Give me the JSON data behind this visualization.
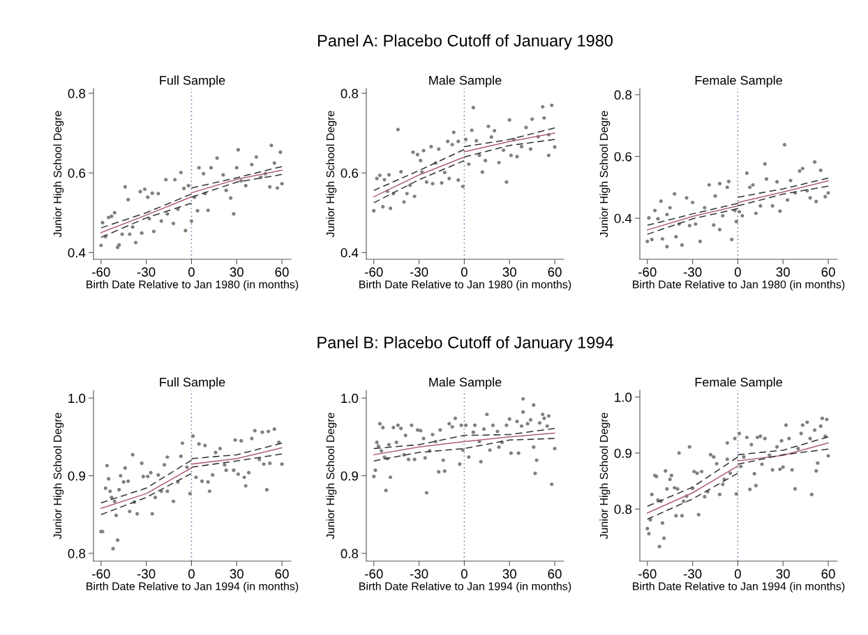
{
  "chart_data": [
    {
      "type": "scatter",
      "title": "Full Sample",
      "xlabel": "Birth Date Relative to Jan 1980 (in months)",
      "ylabel": "Junior High School Degre",
      "marker": "circle",
      "xlim": [
        -65,
        66
      ],
      "xticks": [
        -60,
        -30,
        0,
        30,
        60
      ],
      "ylim": [
        0.383,
        0.812
      ],
      "yticks": [
        {
          "value": 0.4,
          "label": "0.4"
        },
        {
          "value": 0.6,
          "label": "0.6"
        },
        {
          "value": 0.8,
          "label": "0.8"
        }
      ],
      "ref_lines": [
        {
          "axis": "x",
          "value": 0,
          "color": "#4a6f9a",
          "line_style": "dotted"
        }
      ],
      "series": [
        {
          "color": "#808080",
          "x": [
            -60,
            -59,
            -57,
            -55,
            -53,
            -51,
            -49,
            -48,
            -46,
            -44,
            -42,
            -41,
            -39,
            -37,
            -34,
            -33,
            -31,
            -29,
            -28,
            -26,
            -25,
            -22,
            -20,
            -17,
            -16,
            -12,
            -11,
            -9,
            -7,
            -5,
            -4,
            -2,
            0,
            2,
            4,
            5,
            8,
            9,
            11,
            13,
            17,
            21,
            23,
            26,
            28,
            30,
            31,
            33,
            36,
            40,
            43,
            46,
            49,
            52,
            53,
            55,
            57,
            59,
            60
          ],
          "values": [
            0.418,
            0.475,
            0.44,
            0.488,
            0.491,
            0.5,
            0.413,
            0.419,
            0.446,
            0.565,
            0.533,
            0.446,
            0.464,
            0.425,
            0.553,
            0.449,
            0.559,
            0.539,
            0.485,
            0.549,
            0.453,
            0.548,
            0.479,
            0.583,
            0.497,
            0.473,
            0.583,
            0.509,
            0.601,
            0.561,
            0.455,
            0.568,
            0.479,
            0.539,
            0.505,
            0.613,
            0.598,
            0.548,
            0.506,
            0.613,
            0.637,
            0.595,
            0.556,
            0.537,
            0.497,
            0.613,
            0.658,
            0.58,
            0.568,
            0.621,
            0.64,
            0.589,
            0.598,
            0.565,
            0.669,
            0.625,
            0.562,
            0.652,
            0.573
          ]
        },
        {
          "type": "line",
          "color": "#b06070",
          "marker": "none",
          "x": [
            -60,
            -30,
            0
          ],
          "values": [
            0.45,
            0.494,
            0.54
          ]
        },
        {
          "type": "line",
          "color": "#b06070",
          "marker": "none",
          "x": [
            0,
            30,
            60
          ],
          "values": [
            0.55,
            0.584,
            0.607
          ]
        },
        {
          "type": "line",
          "color": "#333333",
          "marker": "none",
          "line_style": "dashed",
          "x": [
            -60,
            -30,
            0
          ],
          "values": [
            0.462,
            0.5,
            0.547
          ]
        },
        {
          "type": "line",
          "color": "#333333",
          "marker": "none",
          "line_style": "dashed",
          "x": [
            -60,
            -30,
            0
          ],
          "values": [
            0.438,
            0.487,
            0.524
          ]
        },
        {
          "type": "line",
          "color": "#333333",
          "marker": "none",
          "line_style": "dashed",
          "x": [
            0,
            30,
            60
          ],
          "values": [
            0.562,
            0.588,
            0.616
          ]
        },
        {
          "type": "line",
          "color": "#333333",
          "marker": "none",
          "line_style": "dashed",
          "x": [
            0,
            30,
            60
          ],
          "values": [
            0.539,
            0.577,
            0.596
          ]
        }
      ]
    },
    {
      "type": "scatter",
      "title": "Male Sample",
      "annotations": [
        "Panel A: Placebo Cutoff of January 1980"
      ],
      "xlabel": "Birth Date Relative to Jan 1980 (in months)",
      "ylabel": "Junior High School Degre",
      "marker": "circle",
      "xlim": [
        -65,
        66
      ],
      "xticks": [
        -60,
        -30,
        0,
        30,
        60
      ],
      "ylim": [
        0.383,
        0.812
      ],
      "yticks": [
        {
          "value": 0.4,
          "label": "0.4"
        },
        {
          "value": 0.6,
          "label": "0.6"
        },
        {
          "value": 0.8,
          "label": "0.8"
        }
      ],
      "ref_lines": [
        {
          "axis": "x",
          "value": 0,
          "color": "#4a6f9a",
          "line_style": "dotted"
        }
      ],
      "series": [
        {
          "color": "#808080",
          "x": [
            -60,
            -58,
            -56,
            -54,
            -53,
            -51,
            -50,
            -49,
            -47,
            -44,
            -42,
            -40,
            -38,
            -36,
            -34,
            -33,
            -31,
            -29,
            -28,
            -27,
            -25,
            -22,
            -21,
            -19,
            -17,
            -15,
            -13,
            -11,
            -10,
            -8,
            -7,
            -4,
            -4,
            -1,
            1,
            3,
            5,
            6,
            8,
            10,
            12,
            14,
            16,
            18,
            20,
            23,
            26,
            28,
            30,
            31,
            33,
            35,
            38,
            41,
            44,
            45,
            49,
            52,
            53,
            56,
            56,
            58,
            60
          ],
          "values": [
            0.505,
            0.586,
            0.594,
            0.515,
            0.583,
            0.554,
            0.595,
            0.511,
            0.548,
            0.709,
            0.603,
            0.527,
            0.548,
            0.569,
            0.652,
            0.541,
            0.646,
            0.631,
            0.602,
            0.656,
            0.577,
            0.666,
            0.573,
            0.625,
            0.66,
            0.575,
            0.601,
            0.679,
            0.586,
            0.671,
            0.702,
            0.679,
            0.582,
            0.566,
            0.684,
            0.622,
            0.707,
            0.764,
            0.681,
            0.644,
            0.602,
            0.631,
            0.717,
            0.69,
            0.706,
            0.626,
            0.657,
            0.577,
            0.733,
            0.644,
            0.684,
            0.641,
            0.666,
            0.714,
            0.66,
            0.735,
            0.691,
            0.766,
            0.738,
            0.696,
            0.644,
            0.77,
            0.665
          ]
        },
        {
          "type": "line",
          "color": "#b06070",
          "marker": "none",
          "x": [
            -60,
            -30,
            0
          ],
          "values": [
            0.54,
            0.595,
            0.64
          ]
        },
        {
          "type": "line",
          "color": "#b06070",
          "marker": "none",
          "x": [
            0,
            30,
            60
          ],
          "values": [
            0.653,
            0.679,
            0.7
          ]
        },
        {
          "type": "line",
          "color": "#333333",
          "marker": "none",
          "line_style": "dashed",
          "x": [
            -60,
            -30,
            0
          ],
          "values": [
            0.556,
            0.606,
            0.659
          ]
        },
        {
          "type": "line",
          "color": "#333333",
          "marker": "none",
          "line_style": "dashed",
          "x": [
            -60,
            -30,
            0
          ],
          "values": [
            0.525,
            0.583,
            0.631
          ]
        },
        {
          "type": "line",
          "color": "#333333",
          "marker": "none",
          "line_style": "dashed",
          "x": [
            0,
            30,
            60
          ],
          "values": [
            0.666,
            0.684,
            0.713
          ]
        },
        {
          "type": "line",
          "color": "#333333",
          "marker": "none",
          "line_style": "dashed",
          "x": [
            0,
            30,
            60
          ],
          "values": [
            0.64,
            0.669,
            0.684
          ]
        }
      ]
    },
    {
      "type": "scatter",
      "title": "Female Sample",
      "xlabel": "Birth Date Relative to Jan 1980 (in months)",
      "ylabel": "Junior High School Degre",
      "marker": "circle",
      "xlim": [
        -65,
        66
      ],
      "xticks": [
        -60,
        -30,
        0,
        30,
        60
      ],
      "ylim": [
        0.267,
        0.82
      ],
      "yticks": [
        {
          "value": 0.4,
          "label": "0.4"
        },
        {
          "value": 0.6,
          "label": "0.6"
        },
        {
          "value": 0.8,
          "label": "0.8"
        }
      ],
      "ref_lines": [
        {
          "axis": "x",
          "value": 0,
          "color": "#4a6f9a",
          "line_style": "dotted"
        }
      ],
      "series": [
        {
          "color": "#808080",
          "x": [
            -60,
            -59,
            -57,
            -55,
            -53,
            -51,
            -50,
            -47,
            -47,
            -45,
            -42,
            -41,
            -39,
            -37,
            -34,
            -32,
            -30,
            -28,
            -25,
            -22,
            -19,
            -16,
            -15,
            -12,
            -12,
            -10,
            -7,
            -6,
            -4,
            -2,
            -1,
            1,
            3,
            6,
            8,
            10,
            12,
            15,
            18,
            19,
            23,
            26,
            28,
            31,
            33,
            35,
            38,
            41,
            43,
            46,
            48,
            51,
            52,
            55,
            58,
            60
          ],
          "values": [
            0.325,
            0.401,
            0.331,
            0.425,
            0.398,
            0.455,
            0.333,
            0.308,
            0.412,
            0.434,
            0.479,
            0.34,
            0.381,
            0.313,
            0.466,
            0.376,
            0.451,
            0.381,
            0.325,
            0.434,
            0.508,
            0.378,
            0.472,
            0.363,
            0.512,
            0.408,
            0.5,
            0.519,
            0.331,
            0.425,
            0.389,
            0.421,
            0.408,
            0.546,
            0.5,
            0.508,
            0.416,
            0.44,
            0.576,
            0.527,
            0.44,
            0.518,
            0.423,
            0.638,
            0.459,
            0.522,
            0.482,
            0.553,
            0.561,
            0.489,
            0.466,
            0.582,
            0.454,
            0.555,
            0.47,
            0.482
          ]
        },
        {
          "type": "line",
          "color": "#b06070",
          "marker": "none",
          "x": [
            -60,
            -30,
            0
          ],
          "values": [
            0.362,
            0.406,
            0.44
          ]
        },
        {
          "type": "line",
          "color": "#b06070",
          "marker": "none",
          "x": [
            0,
            30,
            60
          ],
          "values": [
            0.451,
            0.485,
            0.521
          ]
        },
        {
          "type": "line",
          "color": "#333333",
          "marker": "none",
          "line_style": "dashed",
          "x": [
            -60,
            -30,
            0
          ],
          "values": [
            0.377,
            0.414,
            0.448
          ]
        },
        {
          "type": "line",
          "color": "#333333",
          "marker": "none",
          "line_style": "dashed",
          "x": [
            -60,
            -30,
            0
          ],
          "values": [
            0.348,
            0.398,
            0.431
          ]
        },
        {
          "type": "line",
          "color": "#333333",
          "marker": "none",
          "line_style": "dashed",
          "x": [
            0,
            30,
            60
          ],
          "values": [
            0.468,
            0.495,
            0.53
          ]
        },
        {
          "type": "line",
          "color": "#333333",
          "marker": "none",
          "line_style": "dashed",
          "x": [
            0,
            30,
            60
          ],
          "values": [
            0.44,
            0.478,
            0.504
          ]
        }
      ]
    },
    {
      "type": "scatter",
      "title": "Full Sample",
      "xlabel": "Birth Date Relative to Jan 1994 (in months)",
      "ylabel": "Junior High School Degre",
      "marker": "circle",
      "xlim": [
        -65,
        66
      ],
      "xticks": [
        -60,
        -30,
        0,
        30,
        60
      ],
      "ylim": [
        0.79,
        1.01
      ],
      "yticks": [
        {
          "value": 0.8,
          "label": "0.8"
        },
        {
          "value": 0.9,
          "label": "0.9"
        },
        {
          "value": 1,
          "label": "1.0"
        }
      ],
      "ref_lines": [
        {
          "axis": "x",
          "value": 0,
          "color": "#4a6f9a",
          "line_style": "dotted"
        }
      ],
      "series": [
        {
          "color": "#808080",
          "x": [
            -60,
            -59,
            -57,
            -56,
            -55,
            -54,
            -53,
            -52,
            -51,
            -50,
            -49,
            -48,
            -47,
            -45,
            -44,
            -42,
            -41,
            -39,
            -38,
            -36,
            -33,
            -32,
            -29,
            -27,
            -26,
            -24,
            -22,
            -20,
            -18,
            -16,
            -16,
            -12,
            -9,
            -7,
            -6,
            -3,
            -1,
            1,
            3,
            5,
            7,
            9,
            11,
            12,
            14,
            16,
            19,
            22,
            23,
            28,
            29,
            31,
            33,
            35,
            36,
            38,
            40,
            42,
            45,
            47,
            48,
            50,
            51,
            52,
            55,
            58,
            60
          ],
          "values": [
            0.828,
            0.828,
            0.884,
            0.913,
            0.896,
            0.88,
            0.872,
            0.806,
            0.867,
            0.849,
            0.817,
            0.882,
            0.9,
            0.892,
            0.91,
            0.893,
            0.854,
            0.927,
            0.866,
            0.851,
            0.916,
            0.899,
            0.899,
            0.904,
            0.851,
            0.872,
            0.901,
            0.88,
            0.914,
            0.88,
            0.924,
            0.867,
            0.892,
            0.925,
            0.942,
            0.911,
            0.877,
            0.951,
            0.898,
            0.941,
            0.893,
            0.939,
            0.892,
            0.88,
            0.901,
            0.93,
            0.935,
            0.914,
            0.907,
            0.907,
            0.946,
            0.902,
            0.945,
            0.898,
            0.887,
            0.904,
            0.948,
            0.958,
            0.921,
            0.956,
            0.915,
            0.882,
            0.957,
            0.916,
            0.96,
            0.943,
            0.915
          ]
        },
        {
          "type": "line",
          "color": "#b06070",
          "marker": "none",
          "x": [
            -60,
            -30,
            0
          ],
          "values": [
            0.858,
            0.877,
            0.91
          ]
        },
        {
          "type": "line",
          "color": "#b06070",
          "marker": "none",
          "x": [
            0,
            30,
            60
          ],
          "values": [
            0.915,
            0.922,
            0.936
          ]
        },
        {
          "type": "line",
          "color": "#333333",
          "marker": "none",
          "line_style": "dashed",
          "x": [
            -60,
            -30,
            0
          ],
          "values": [
            0.865,
            0.884,
            0.92
          ]
        },
        {
          "type": "line",
          "color": "#333333",
          "marker": "none",
          "line_style": "dashed",
          "x": [
            -60,
            -30,
            0
          ],
          "values": [
            0.85,
            0.872,
            0.903
          ]
        },
        {
          "type": "line",
          "color": "#333333",
          "marker": "none",
          "line_style": "dashed",
          "x": [
            0,
            30,
            60
          ],
          "values": [
            0.922,
            0.927,
            0.942
          ]
        },
        {
          "type": "line",
          "color": "#333333",
          "marker": "none",
          "line_style": "dashed",
          "x": [
            0,
            30,
            60
          ],
          "values": [
            0.911,
            0.919,
            0.928
          ]
        }
      ]
    },
    {
      "type": "scatter",
      "title": "Male Sample",
      "annotations": [
        "Panel B: Placebo Cutoff of January 1994"
      ],
      "xlabel": "Birth Date Relative to Jan 1994 (in months)",
      "ylabel": "Junior High School Degre",
      "marker": "circle",
      "xlim": [
        -65,
        66
      ],
      "xticks": [
        -60,
        -30,
        0,
        30,
        60
      ],
      "ylim": [
        0.79,
        1.01
      ],
      "yticks": [
        {
          "value": 0.8,
          "label": "0.8"
        },
        {
          "value": 0.9,
          "label": "0.9"
        },
        {
          "value": 1,
          "label": "1.0"
        }
      ],
      "ref_lines": [
        {
          "axis": "x",
          "value": 0,
          "color": "#4a6f9a",
          "line_style": "dotted"
        }
      ],
      "series": [
        {
          "color": "#808080",
          "x": [
            -60,
            -59,
            -58,
            -57,
            -56,
            -55,
            -54,
            -53,
            -52,
            -51,
            -50,
            -49,
            -47,
            -45,
            -44,
            -42,
            -40,
            -39,
            -37,
            -35,
            -33,
            -31,
            -29,
            -27,
            -26,
            -25,
            -23,
            -21,
            -19,
            -17,
            -16,
            -14,
            -13,
            -10,
            -8,
            -6,
            -3,
            -2,
            -1,
            1,
            3,
            6,
            7,
            10,
            11,
            13,
            15,
            17,
            19,
            22,
            23,
            25,
            28,
            30,
            31,
            35,
            36,
            38,
            39,
            39,
            42,
            44,
            46,
            46,
            47,
            48,
            50,
            52,
            53,
            55,
            56,
            58,
            60
          ],
          "values": [
            0.899,
            0.907,
            0.943,
            0.938,
            0.967,
            0.932,
            0.962,
            0.924,
            0.881,
            0.922,
            0.94,
            0.898,
            0.962,
            0.943,
            0.965,
            0.961,
            0.927,
            0.952,
            0.921,
            0.965,
            0.921,
            0.959,
            0.958,
            0.948,
            0.923,
            0.878,
            0.932,
            0.953,
            0.944,
            0.905,
            0.959,
            0.92,
            0.906,
            0.967,
            0.963,
            0.974,
            0.915,
            0.965,
            0.933,
            0.965,
            0.924,
            0.956,
            0.965,
            0.944,
            0.918,
            0.96,
            0.979,
            0.933,
            0.965,
            0.957,
            0.937,
            0.943,
            0.965,
            0.973,
            0.929,
            0.97,
            0.929,
            0.964,
            0.982,
            0.999,
            0.967,
            0.972,
            0.937,
            0.991,
            0.903,
            0.92,
            0.968,
            0.979,
            0.974,
            0.964,
            0.977,
            0.889,
            0.935
          ]
        },
        {
          "type": "line",
          "color": "#b06070",
          "marker": "none",
          "x": [
            -60,
            -30,
            0,
            30,
            60
          ],
          "values": [
            0.927,
            0.937,
            0.944,
            0.95,
            0.955
          ]
        },
        {
          "type": "line",
          "color": "#333333",
          "marker": "none",
          "line_style": "dashed",
          "x": [
            -60,
            -30,
            0,
            30,
            60
          ],
          "values": [
            0.935,
            0.94,
            0.952,
            0.953,
            0.961
          ]
        },
        {
          "type": "line",
          "color": "#333333",
          "marker": "none",
          "line_style": "dashed",
          "x": [
            -60,
            -30,
            0,
            30,
            60
          ],
          "values": [
            0.919,
            0.93,
            0.935,
            0.946,
            0.948
          ]
        }
      ]
    },
    {
      "type": "scatter",
      "title": "Female Sample",
      "xlabel": "Birth Date Relative to Jan 1994 (in months)",
      "ylabel": "Junior High School Degre",
      "marker": "circle",
      "xlim": [
        -65,
        66
      ],
      "xticks": [
        -60,
        -30,
        0,
        30,
        60
      ],
      "ylim": [
        0.707,
        1.012
      ],
      "yticks": [
        {
          "value": 0.8,
          "label": "0.8"
        },
        {
          "value": 0.9,
          "label": "0.9"
        },
        {
          "value": 1,
          "label": "1.0"
        }
      ],
      "ref_lines": [
        {
          "axis": "x",
          "value": 0,
          "color": "#4a6f9a",
          "line_style": "dotted"
        }
      ],
      "series": [
        {
          "color": "#808080",
          "x": [
            -60,
            -59,
            -58,
            -57,
            -55,
            -54,
            -53,
            -52,
            -51,
            -50,
            -49,
            -48,
            -47,
            -45,
            -44,
            -42,
            -41,
            -40,
            -39,
            -37,
            -36,
            -34,
            -32,
            -30,
            -29,
            -27,
            -26,
            -24,
            -22,
            -20,
            -18,
            -16,
            -14,
            -12,
            -10,
            -9,
            -7,
            -7,
            -5,
            -2,
            -1,
            1,
            2,
            4,
            6,
            8,
            9,
            11,
            12,
            13,
            15,
            16,
            18,
            21,
            23,
            26,
            28,
            29,
            30,
            32,
            34,
            36,
            38,
            40,
            42,
            43,
            46,
            48,
            49,
            51,
            52,
            53,
            55,
            56,
            58,
            59,
            60
          ],
          "values": [
            0.765,
            0.756,
            0.781,
            0.826,
            0.86,
            0.858,
            0.816,
            0.733,
            0.814,
            0.775,
            0.748,
            0.868,
            0.836,
            0.853,
            0.86,
            0.838,
            0.788,
            0.836,
            0.9,
            0.788,
            0.814,
            0.823,
            0.911,
            0.837,
            0.867,
            0.864,
            0.79,
            0.867,
            0.822,
            0.831,
            0.897,
            0.893,
            0.881,
            0.826,
            0.844,
            0.853,
            0.889,
            0.918,
            0.864,
            0.926,
            0.827,
            0.935,
            0.876,
            0.893,
            0.928,
            0.835,
            0.915,
            0.863,
            0.842,
            0.928,
            0.93,
            0.88,
            0.926,
            0.896,
            0.87,
            0.911,
            0.871,
            0.922,
            0.875,
            0.95,
            0.926,
            0.87,
            0.836,
            0.908,
            0.935,
            0.95,
            0.955,
            0.926,
            0.826,
            0.941,
            0.868,
            0.882,
            0.948,
            0.962,
            0.93,
            0.96,
            0.895
          ]
        },
        {
          "type": "line",
          "color": "#b06070",
          "marker": "none",
          "x": [
            -60,
            -30,
            0
          ],
          "values": [
            0.793,
            0.829,
            0.877
          ]
        },
        {
          "type": "line",
          "color": "#b06070",
          "marker": "none",
          "x": [
            0,
            30,
            60
          ],
          "values": [
            0.886,
            0.896,
            0.918
          ]
        },
        {
          "type": "line",
          "color": "#333333",
          "marker": "none",
          "line_style": "dashed",
          "x": [
            -60,
            -30,
            0
          ],
          "values": [
            0.805,
            0.839,
            0.893
          ]
        },
        {
          "type": "line",
          "color": "#333333",
          "marker": "none",
          "line_style": "dashed",
          "x": [
            -60,
            -30,
            0
          ],
          "values": [
            0.782,
            0.818,
            0.864
          ]
        },
        {
          "type": "line",
          "color": "#333333",
          "marker": "none",
          "line_style": "dashed",
          "x": [
            0,
            30,
            60
          ],
          "values": [
            0.897,
            0.905,
            0.929
          ]
        },
        {
          "type": "line",
          "color": "#333333",
          "marker": "none",
          "line_style": "dashed",
          "x": [
            0,
            30,
            60
          ],
          "values": [
            0.88,
            0.897,
            0.907
          ]
        }
      ]
    }
  ]
}
